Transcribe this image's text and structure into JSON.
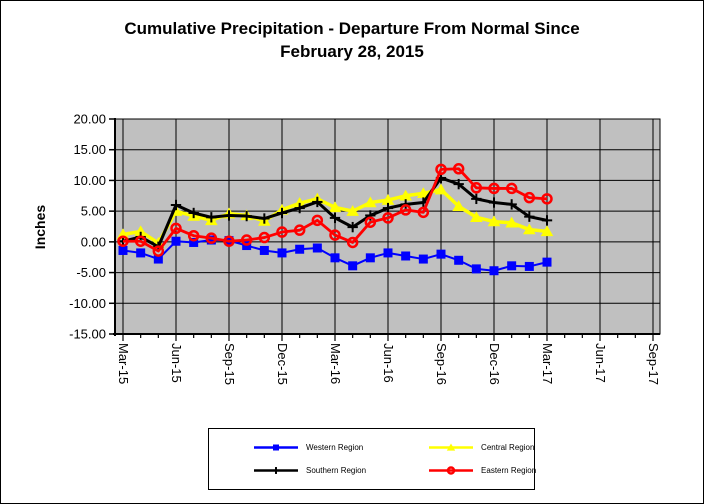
{
  "title": {
    "line1": "Cumulative Precipitation - Departure From Normal Since",
    "line2": "February 28, 2015"
  },
  "chart_data": {
    "type": "line",
    "title": "Cumulative Precipitation - Departure From Normal Since February 28, 2015",
    "xlabel": "",
    "ylabel": "Inches",
    "ylim": [
      -15,
      20
    ],
    "ytick_step": 5,
    "ytick_values": [
      20,
      15,
      10,
      5,
      0,
      -5,
      -10,
      -15
    ],
    "ytick_labels": [
      "20.00",
      "15.00",
      "10.00",
      "5.00",
      "0.00",
      "-5.00",
      "-10.00",
      "-15.00"
    ],
    "xtick_labels": [
      "Mar-15",
      "Jun-15",
      "Sep-15",
      "Dec-15",
      "Mar-16",
      "Jun-16",
      "Sep-16",
      "Dec-16",
      "Mar-17",
      "Jun-17",
      "Sep-17"
    ],
    "x_axis_months_total": 31,
    "grid": true,
    "plot_bg": "#C0C0C0",
    "legend_position": "bottom",
    "categories": [
      "Mar-15",
      "Apr-15",
      "May-15",
      "Jun-15",
      "Jul-15",
      "Aug-15",
      "Sep-15",
      "Oct-15",
      "Nov-15",
      "Dec-15",
      "Jan-16",
      "Feb-16",
      "Mar-16",
      "Apr-16",
      "May-16",
      "Jun-16",
      "Jul-16",
      "Aug-16",
      "Sep-16",
      "Oct-16",
      "Nov-16",
      "Dec-16",
      "Jan-17",
      "Feb-17",
      "Mar-17"
    ],
    "series": [
      {
        "name": "Western Region",
        "color": "#0000FF",
        "marker": "square",
        "values": [
          -1.4,
          -1.8,
          -2.8,
          0.1,
          -0.1,
          0.3,
          0.2,
          -0.6,
          -1.4,
          -1.8,
          -1.2,
          -1.0,
          -2.6,
          -3.9,
          -2.6,
          -1.8,
          -2.3,
          -2.8,
          -2.0,
          -3.0,
          -4.4,
          -4.7,
          -3.9,
          -4.0,
          -3.3
        ]
      },
      {
        "name": "Central Region",
        "color": "#FFFF00",
        "marker": "triangle",
        "values": [
          1.2,
          1.7,
          -0.2,
          5.0,
          4.2,
          3.5,
          4.6,
          4.3,
          3.4,
          5.2,
          6.3,
          7.0,
          5.6,
          5.0,
          6.4,
          6.8,
          7.5,
          7.9,
          8.5,
          5.8,
          4.0,
          3.3,
          3.1,
          2.0,
          1.7
        ]
      },
      {
        "name": "Southern Region",
        "color": "#000000",
        "marker": "plus",
        "values": [
          0.1,
          0.8,
          -0.8,
          6.0,
          4.7,
          4.0,
          4.3,
          4.2,
          3.8,
          4.7,
          5.5,
          6.5,
          3.9,
          2.4,
          4.3,
          5.5,
          6.1,
          6.4,
          10.4,
          9.4,
          7.0,
          6.4,
          6.1,
          4.1,
          3.5
        ]
      },
      {
        "name": "Eastern Region",
        "color": "#FF0000",
        "marker": "circle",
        "values": [
          0.1,
          0.1,
          -1.5,
          2.2,
          1.0,
          0.6,
          0.1,
          0.3,
          0.7,
          1.6,
          1.9,
          3.5,
          1.1,
          -0.1,
          3.2,
          3.9,
          5.2,
          4.8,
          11.8,
          11.9,
          8.8,
          8.7,
          8.7,
          7.2,
          7.0
        ]
      }
    ]
  }
}
